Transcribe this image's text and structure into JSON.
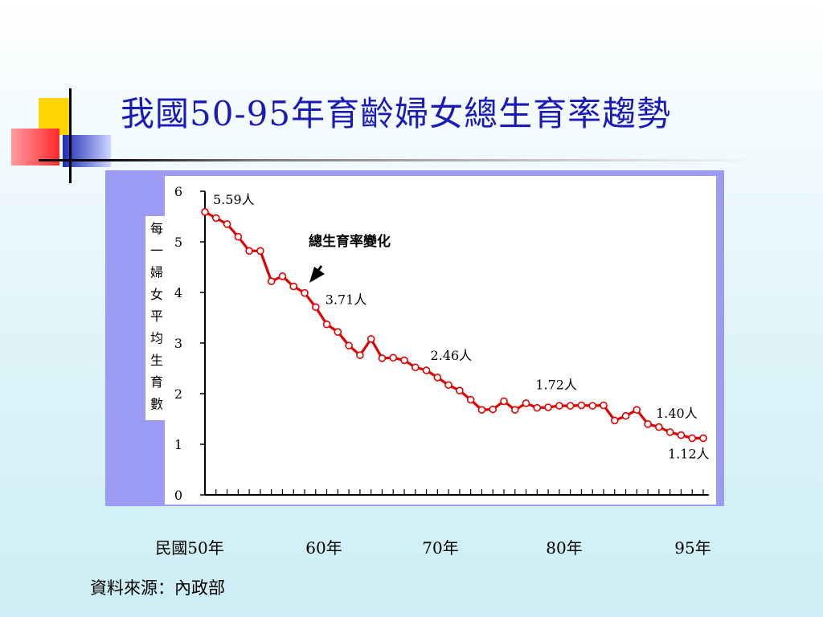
{
  "title": "我國50-95年育齡婦女總生育率趨勢",
  "source": "資料來源：內政部",
  "colors": {
    "title": "#1a1ab8",
    "line": "#e00000",
    "frame": "#9b9bf4",
    "plot_bg": "#ffffff"
  },
  "chart_data": {
    "type": "line",
    "title": "",
    "ylabel": "每一婦女平均生育數",
    "ylim": [
      0,
      6
    ],
    "yticks": [
      "0",
      "1",
      "2",
      "3",
      "4",
      "5",
      "6"
    ],
    "xlim": [
      50,
      95
    ],
    "x_axis_labels": [
      {
        "x": 50,
        "label": "民國50年"
      },
      {
        "x": 60,
        "label": "60年"
      },
      {
        "x": 70,
        "label": "70年"
      },
      {
        "x": 80,
        "label": "80年"
      },
      {
        "x": 95,
        "label": "95年"
      }
    ],
    "series": [
      {
        "name": "總生育率變化",
        "x": [
          50,
          51,
          52,
          53,
          54,
          55,
          56,
          57,
          58,
          59,
          60,
          61,
          62,
          63,
          64,
          65,
          66,
          67,
          68,
          69,
          70,
          71,
          72,
          73,
          74,
          75,
          76,
          77,
          78,
          79,
          80,
          81,
          82,
          83,
          84,
          85,
          86,
          87,
          88,
          89,
          90,
          91,
          92,
          93,
          94,
          95
        ],
        "values": [
          5.59,
          5.47,
          5.35,
          5.1,
          4.82,
          4.82,
          4.22,
          4.32,
          4.12,
          3.99,
          3.71,
          3.37,
          3.22,
          2.95,
          2.76,
          3.08,
          2.7,
          2.71,
          2.66,
          2.52,
          2.46,
          2.32,
          2.17,
          2.06,
          1.88,
          1.68,
          1.69,
          1.85,
          1.68,
          1.81,
          1.72,
          1.73,
          1.76,
          1.76,
          1.77,
          1.76,
          1.77,
          1.47,
          1.56,
          1.68,
          1.4,
          1.34,
          1.24,
          1.18,
          1.12,
          1.12
        ]
      }
    ],
    "data_labels": [
      {
        "x": 50,
        "y": 5.59,
        "text": "5.59人"
      },
      {
        "x": 60,
        "y": 3.71,
        "text": "3.71人"
      },
      {
        "x": 70,
        "y": 2.46,
        "text": "2.46人"
      },
      {
        "x": 80,
        "y": 1.72,
        "text": "1.72人"
      },
      {
        "x": 90,
        "y": 1.4,
        "text": "1.40人"
      },
      {
        "x": 95,
        "y": 1.12,
        "text": "1.12人"
      }
    ],
    "annotation": {
      "text": "總生育率變化"
    },
    "grid": false,
    "legend": "none"
  }
}
